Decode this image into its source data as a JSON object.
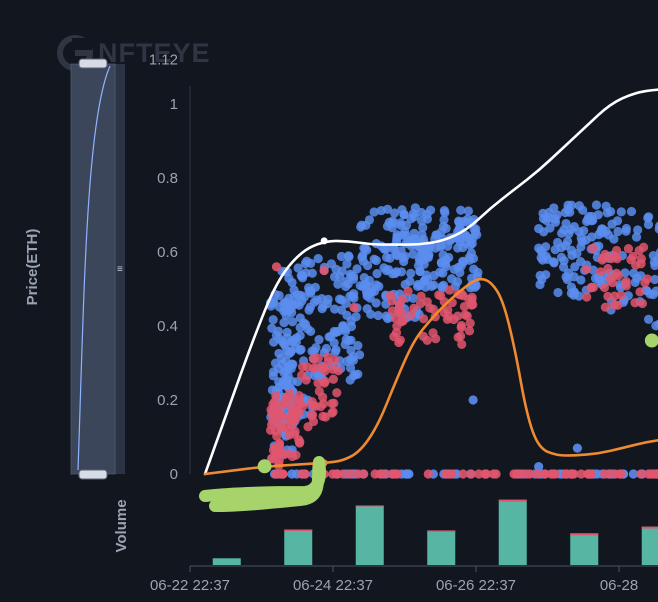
{
  "watermark": "NFTEYE",
  "chart_data": [
    {
      "type": "scatter",
      "title": "",
      "ylabel": "Price(ETH)",
      "xlabel": "",
      "ylim": [
        0,
        1.12
      ],
      "y_ticks": [
        "1.12",
        "1",
        "0.8",
        "0.6",
        "0.4",
        "0.2",
        "0"
      ],
      "y_tick_values": [
        1.12,
        1,
        0.8,
        0.6,
        0.4,
        0.2,
        0
      ],
      "x_range_hours": [
        0,
        162
      ],
      "x_ticks": [
        "06-22 22:37",
        "06-24 22:37",
        "06-26 22:37",
        "06-28"
      ],
      "x_tick_hours": [
        0,
        48,
        96,
        144
      ],
      "series": [
        {
          "name": "blue sales",
          "color": "#5b8def",
          "clusters": [
            {
              "x": [
                22,
                30
              ],
              "y": [
                0.04,
                0.5
              ],
              "n": 90
            },
            {
              "x": [
                24,
                36
              ],
              "y": [
                0.15,
                0.58
              ],
              "n": 80
            },
            {
              "x": [
                36,
                52
              ],
              "y": [
                0.25,
                0.6
              ],
              "n": 90
            },
            {
              "x": [
                52,
                72
              ],
              "y": [
                0.42,
                0.72
              ],
              "n": 120
            },
            {
              "x": [
                72,
                92
              ],
              "y": [
                0.5,
                0.72
              ],
              "n": 120
            },
            {
              "x": [
                112,
                136
              ],
              "y": [
                0.48,
                0.73
              ],
              "n": 110
            },
            {
              "x": [
                136,
                162
              ],
              "y": [
                0.4,
                0.72
              ],
              "n": 70
            }
          ],
          "baseline": {
            "x": [
              22,
              162
            ],
            "y": 0,
            "n": 60
          },
          "outliers": [
            {
              "x": 90,
              "y": 0.2
            },
            {
              "x": 112,
              "y": 0.02
            },
            {
              "x": 125,
              "y": 0.07
            }
          ]
        },
        {
          "name": "red sales",
          "color": "#e0566e",
          "clusters": [
            {
              "x": [
                22,
                32
              ],
              "y": [
                0.02,
                0.22
              ],
              "n": 70
            },
            {
              "x": [
                30,
                46
              ],
              "y": [
                0.12,
                0.32
              ],
              "n": 40
            },
            {
              "x": [
                62,
                90
              ],
              "y": [
                0.35,
                0.5
              ],
              "n": 60
            },
            {
              "x": [
                128,
                150
              ],
              "y": [
                0.45,
                0.62
              ],
              "n": 40
            }
          ],
          "baseline": {
            "x": [
              22,
              162
            ],
            "y": 0,
            "n": 70
          },
          "outliers": [
            {
              "x": 40,
              "y": 0.55
            },
            {
              "x": 24,
              "y": 0.56
            },
            {
              "x": 50,
              "y": 0.45
            }
          ]
        }
      ],
      "lines": [
        {
          "name": "white trend",
          "color": "#ffffff",
          "x": [
            0,
            8,
            16,
            24,
            32,
            40,
            48,
            56,
            64,
            72,
            80,
            88,
            96,
            104,
            112,
            120,
            128,
            136,
            144,
            152,
            162
          ],
          "y": [
            0,
            0.18,
            0.36,
            0.52,
            0.6,
            0.63,
            0.63,
            0.62,
            0.62,
            0.62,
            0.63,
            0.66,
            0.72,
            0.77,
            0.82,
            0.88,
            0.94,
            1.0,
            1.03,
            1.04,
            1.04
          ],
          "marker": {
            "x": 40,
            "y": 0.63
          }
        },
        {
          "name": "orange trend",
          "color": "#f08a30",
          "x": [
            0,
            10,
            20,
            30,
            40,
            46,
            52,
            58,
            64,
            70,
            76,
            82,
            88,
            92,
            96,
            100,
            104,
            108,
            112,
            118,
            124,
            132,
            140,
            150,
            162
          ],
          "y": [
            0,
            0.01,
            0.02,
            0.025,
            0.03,
            0.035,
            0.06,
            0.13,
            0.25,
            0.36,
            0.42,
            0.47,
            0.51,
            0.53,
            0.52,
            0.47,
            0.34,
            0.16,
            0.07,
            0.05,
            0.05,
            0.055,
            0.07,
            0.09,
            0.1
          ],
          "marker": {
            "x": 40,
            "y": 0.03
          }
        }
      ],
      "highlight_points": [
        {
          "x": 20,
          "y": 0.01,
          "color": "#a6d36a"
        },
        {
          "x": 150,
          "y": 0.35,
          "color": "#a6d36a"
        }
      ]
    },
    {
      "type": "bar",
      "ylabel": "Volume",
      "bar_hours": [
        12,
        36,
        60,
        84,
        108,
        132,
        156
      ],
      "values": [
        7,
        37,
        62,
        36,
        68,
        33,
        40
      ],
      "top_red": [
        0,
        1.5,
        1,
        1.5,
        2,
        2,
        2
      ],
      "ylim": [
        0,
        75
      ],
      "bar_color": "#56b6a3",
      "top_color": "#e0566e"
    }
  ],
  "range_slider": {
    "handle_top_label": "",
    "handle_bottom_label": "",
    "grip": "≡"
  }
}
